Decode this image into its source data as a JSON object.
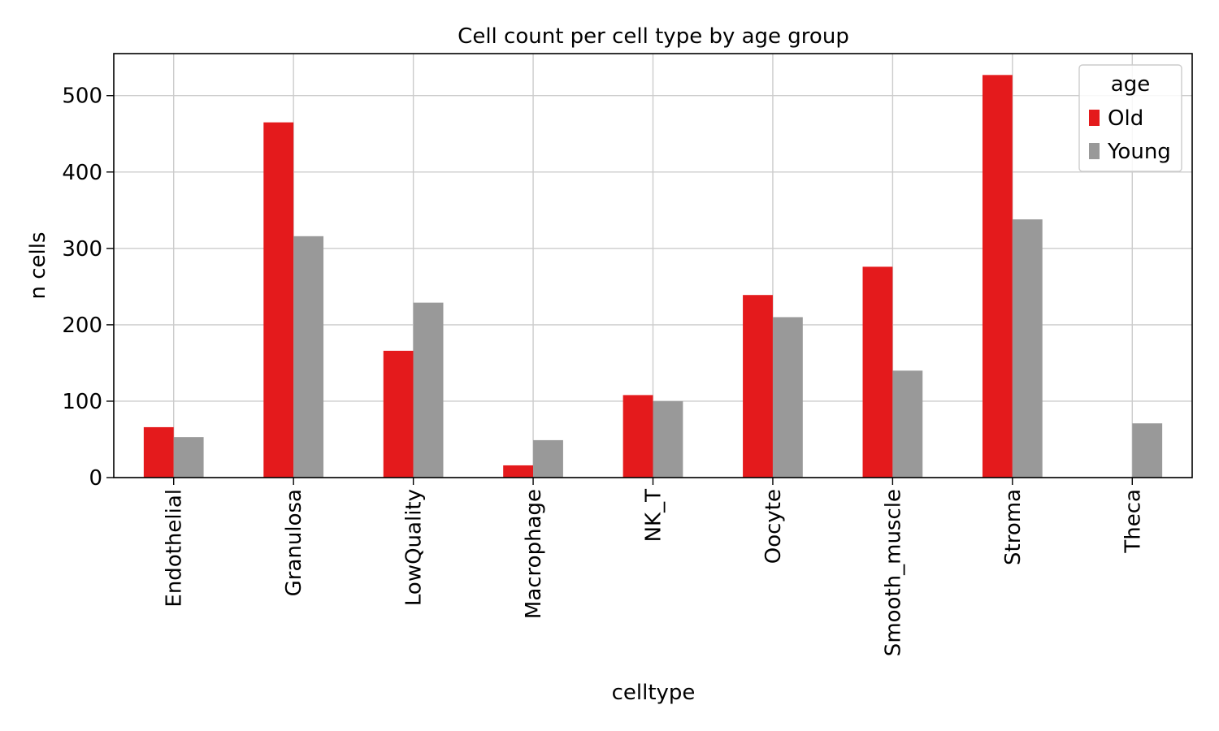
{
  "chart_data": {
    "type": "bar",
    "title": "Cell count per cell type by age group",
    "xlabel": "celltype",
    "ylabel": "n cells",
    "categories": [
      "Endothelial",
      "Granulosa",
      "LowQuality",
      "Macrophage",
      "NK_T",
      "Oocyte",
      "Smooth_muscle",
      "Stroma",
      "Theca"
    ],
    "series": [
      {
        "name": "Old",
        "color": "#e41a1c",
        "values": [
          66,
          465,
          166,
          16,
          108,
          239,
          276,
          527,
          0
        ]
      },
      {
        "name": "Young",
        "color": "#999999",
        "values": [
          53,
          316,
          229,
          49,
          100,
          210,
          140,
          338,
          71
        ]
      }
    ],
    "ylim": [
      0,
      555
    ],
    "yticks": [
      0,
      100,
      200,
      300,
      400,
      500
    ],
    "grid": true,
    "legend": {
      "title": "age",
      "placement": "top-right"
    }
  }
}
